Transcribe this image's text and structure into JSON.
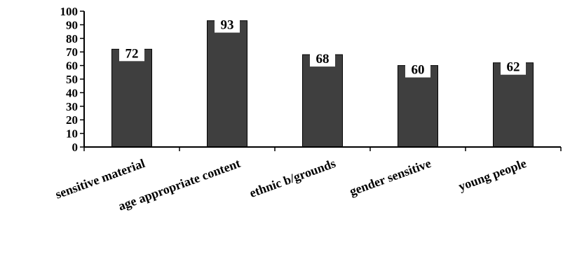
{
  "chart_data": {
    "type": "bar",
    "categories": [
      "sensitive material",
      "age appropriate content",
      "ethnic b/grounds",
      "gender sensitive",
      "young people"
    ],
    "values": [
      72,
      93,
      68,
      60,
      62
    ],
    "data_labels": [
      "72",
      "93",
      "68",
      "60",
      "62"
    ],
    "ylim": [
      0,
      100
    ],
    "yticks": [
      "0",
      "10",
      "20",
      "30",
      "40",
      "50",
      "60",
      "70",
      "80",
      "90",
      "100"
    ],
    "title": "",
    "xlabel": "",
    "ylabel": "",
    "grid": false,
    "legend": "none",
    "colors": {
      "bar": "#3f3f3f",
      "axis": "#000000",
      "label_box": "#ffffff"
    }
  }
}
